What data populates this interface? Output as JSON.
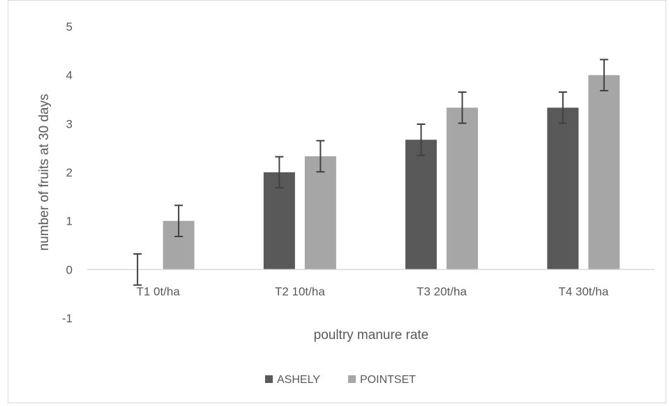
{
  "chart_data": {
    "type": "bar",
    "title": "",
    "xlabel": "poultry manure rate",
    "ylabel": "number of fruits at 30 days",
    "categories": [
      "T1 0t/ha",
      "T2 10t/ha",
      "T3 20t/ha",
      "T4 30t/ha"
    ],
    "series": [
      {
        "name": "ASHELY",
        "color": "#595959",
        "values": [
          0,
          2,
          2.67,
          3.33
        ],
        "error": [
          0.32,
          0.32,
          0.32,
          0.32
        ]
      },
      {
        "name": "POINTSET",
        "color": "#a6a6a6",
        "values": [
          1,
          2.33,
          3.33,
          4
        ],
        "error": [
          0.32,
          0.32,
          0.32,
          0.32
        ]
      }
    ],
    "ylim": [
      -1,
      5
    ],
    "yticks": [
      "-1",
      "0",
      "1",
      "2",
      "3",
      "4",
      "5"
    ],
    "grid": false,
    "legend_position": "bottom"
  }
}
